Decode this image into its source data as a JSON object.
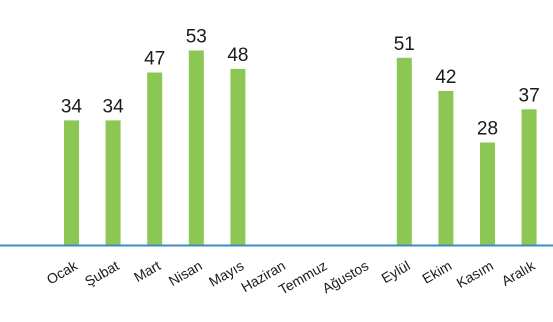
{
  "chart_data": {
    "type": "bar",
    "title": "",
    "xlabel": "",
    "ylabel": "",
    "ylim": [
      0,
      60
    ],
    "grid": false,
    "legend": "none",
    "categories": [
      "Ocak",
      "Şubat",
      "Mart",
      "Nisan",
      "Mayıs",
      "Haziran",
      "Temmuz",
      "Ağustos",
      "Eylül",
      "Ekim",
      "Kasım",
      "Aralık"
    ],
    "values": [
      34,
      34,
      47,
      53,
      48,
      null,
      null,
      null,
      51,
      42,
      28,
      37
    ],
    "value_labels": [
      "34",
      "34",
      "47",
      "53",
      "48",
      "",
      "",
      "",
      "51",
      "42",
      "28",
      "37"
    ],
    "colors": {
      "bar": "#8cc753",
      "axis": "#3a8fbf",
      "text": "#1a1a1a"
    }
  }
}
